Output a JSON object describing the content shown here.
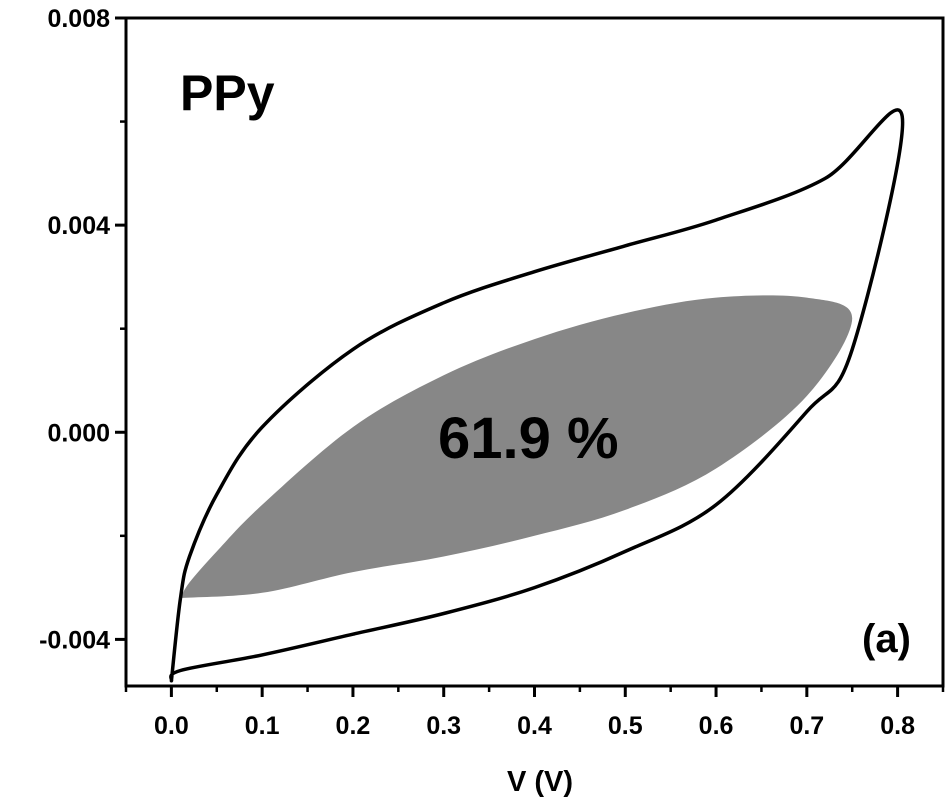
{
  "chart_data": {
    "type": "line",
    "title": "",
    "xlabel": "V (V)",
    "ylabel": "",
    "xlim": [
      -0.05,
      0.85
    ],
    "ylim": [
      -0.0049,
      0.008
    ],
    "x_ticks": [
      0.0,
      0.1,
      0.2,
      0.3,
      0.4,
      0.5,
      0.6,
      0.7,
      0.8
    ],
    "x_tick_labels": [
      "0.0",
      "0.1",
      "0.2",
      "0.3",
      "0.4",
      "0.5",
      "0.6",
      "0.7",
      "0.8"
    ],
    "y_ticks": [
      -0.004,
      0.0,
      0.004,
      0.008
    ],
    "y_tick_labels": [
      "-0.004",
      "0.000",
      "0.004",
      "0.008"
    ],
    "grid": false,
    "legend": "none",
    "annotations": {
      "sample": "PPy",
      "fraction": "61.9 %",
      "panel": "(a)"
    },
    "colors": {
      "curve": "#000000",
      "shaded": "#878787"
    },
    "series": [
      {
        "role": "cv-loop-total",
        "points": [
          [
            0.0,
            -0.0048
          ],
          [
            0.01,
            -0.0046
          ],
          [
            0.1,
            -0.0043
          ],
          [
            0.2,
            -0.0039
          ],
          [
            0.3,
            -0.0035
          ],
          [
            0.4,
            -0.003
          ],
          [
            0.5,
            -0.0023
          ],
          [
            0.6,
            -0.0014
          ],
          [
            0.7,
            0.0004
          ],
          [
            0.75,
            0.0016
          ],
          [
            0.805,
            0.0061
          ],
          [
            0.72,
            0.0049
          ],
          [
            0.6,
            0.0041
          ],
          [
            0.5,
            0.0036
          ],
          [
            0.4,
            0.0031
          ],
          [
            0.3,
            0.0025
          ],
          [
            0.2,
            0.0016
          ],
          [
            0.1,
            0.0001
          ],
          [
            0.05,
            -0.0012
          ],
          [
            0.02,
            -0.0024
          ],
          [
            0.01,
            -0.0032
          ],
          [
            0.0,
            -0.0048
          ]
        ]
      },
      {
        "role": "capacitive-contribution-shaded",
        "points": [
          [
            0.01,
            -0.0032
          ],
          [
            0.1,
            -0.0031
          ],
          [
            0.2,
            -0.0027
          ],
          [
            0.3,
            -0.0024
          ],
          [
            0.4,
            -0.002
          ],
          [
            0.5,
            -0.0015
          ],
          [
            0.6,
            -0.0007
          ],
          [
            0.7,
            0.0007
          ],
          [
            0.75,
            0.0022
          ],
          [
            0.7,
            0.0026
          ],
          [
            0.6,
            0.0026
          ],
          [
            0.5,
            0.0023
          ],
          [
            0.4,
            0.0018
          ],
          [
            0.3,
            0.0011
          ],
          [
            0.2,
            0.0001
          ],
          [
            0.1,
            -0.0014
          ],
          [
            0.05,
            -0.0023
          ],
          [
            0.02,
            -0.0029
          ],
          [
            0.01,
            -0.0032
          ]
        ]
      }
    ]
  }
}
